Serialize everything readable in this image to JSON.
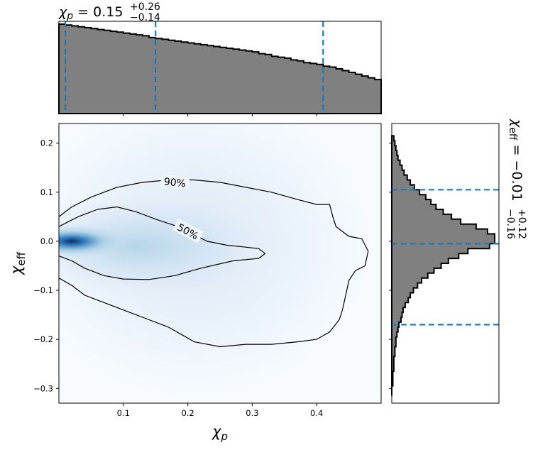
{
  "chart_data": [
    {
      "type": "heatmap",
      "panel": "joint",
      "xlabel_main": "χ",
      "xlabel_sub": "p",
      "ylabel_main": "χ",
      "ylabel_sub": "eff",
      "xlim": [
        0.0,
        0.5
      ],
      "ylim": [
        -0.33,
        0.24
      ],
      "x_ticks": [
        0.1,
        0.2,
        0.3,
        0.4
      ],
      "x_tick_labels": [
        "0.1",
        "0.2",
        "0.3",
        "0.4"
      ],
      "y_ticks": [
        0.2,
        0.1,
        0.0,
        -0.1,
        -0.2,
        -0.3
      ],
      "y_tick_labels": [
        "0.2",
        "0.1",
        "0.0",
        "−0.1",
        "−0.2",
        "−0.3"
      ],
      "colormap": "Blues",
      "density_peak": {
        "x": 0.02,
        "y": 0.0
      },
      "contours": [
        {
          "label": "50%",
          "label_at": [
            0.2,
            0.02
          ],
          "points": [
            [
              0.0,
              0.03
            ],
            [
              0.03,
              0.05
            ],
            [
              0.06,
              0.065
            ],
            [
              0.09,
              0.07
            ],
            [
              0.12,
              0.06
            ],
            [
              0.15,
              0.045
            ],
            [
              0.18,
              0.032
            ],
            [
              0.2,
              0.02
            ],
            [
              0.23,
              0.0
            ],
            [
              0.26,
              -0.008
            ],
            [
              0.29,
              -0.012
            ],
            [
              0.31,
              -0.015
            ],
            [
              0.32,
              -0.025
            ],
            [
              0.31,
              -0.035
            ],
            [
              0.27,
              -0.04
            ],
            [
              0.22,
              -0.055
            ],
            [
              0.18,
              -0.07
            ],
            [
              0.14,
              -0.078
            ],
            [
              0.1,
              -0.077
            ],
            [
              0.07,
              -0.07
            ],
            [
              0.04,
              -0.055
            ],
            [
              0.02,
              -0.04
            ],
            [
              0.0,
              -0.03
            ]
          ]
        },
        {
          "label": "90%",
          "label_at": [
            0.18,
            0.12
          ],
          "points": [
            [
              0.0,
              0.05
            ],
            [
              0.02,
              0.07
            ],
            [
              0.05,
              0.09
            ],
            [
              0.09,
              0.11
            ],
            [
              0.13,
              0.12
            ],
            [
              0.17,
              0.125
            ],
            [
              0.21,
              0.125
            ],
            [
              0.25,
              0.12
            ],
            [
              0.29,
              0.11
            ],
            [
              0.33,
              0.1
            ],
            [
              0.37,
              0.085
            ],
            [
              0.4,
              0.075
            ],
            [
              0.42,
              0.075
            ],
            [
              0.425,
              0.05
            ],
            [
              0.43,
              0.03
            ],
            [
              0.45,
              0.01
            ],
            [
              0.47,
              0.005
            ],
            [
              0.48,
              -0.02
            ],
            [
              0.475,
              -0.05
            ],
            [
              0.46,
              -0.06
            ],
            [
              0.45,
              -0.08
            ],
            [
              0.445,
              -0.11
            ],
            [
              0.44,
              -0.14
            ],
            [
              0.435,
              -0.16
            ],
            [
              0.42,
              -0.185
            ],
            [
              0.4,
              -0.2
            ],
            [
              0.37,
              -0.205
            ],
            [
              0.33,
              -0.21
            ],
            [
              0.29,
              -0.21
            ],
            [
              0.25,
              -0.215
            ],
            [
              0.21,
              -0.205
            ],
            [
              0.19,
              -0.19
            ],
            [
              0.17,
              -0.175
            ],
            [
              0.14,
              -0.16
            ],
            [
              0.1,
              -0.14
            ],
            [
              0.07,
              -0.125
            ],
            [
              0.04,
              -0.11
            ],
            [
              0.02,
              -0.09
            ],
            [
              0.0,
              -0.075
            ]
          ]
        }
      ]
    },
    {
      "type": "bar",
      "panel": "top-marginal",
      "title_main": "χ",
      "title_sub": "p",
      "title_value": " = 0.15",
      "title_sup": "+0.26",
      "title_inf": "−0.14",
      "x_start": 0.0,
      "bin_width": 0.01,
      "values": [
        1.0,
        0.99,
        0.98,
        0.97,
        0.96,
        0.95,
        0.94,
        0.93,
        0.92,
        0.91,
        0.9,
        0.89,
        0.88,
        0.87,
        0.85,
        0.84,
        0.83,
        0.82,
        0.81,
        0.8,
        0.79,
        0.78,
        0.77,
        0.76,
        0.75,
        0.74,
        0.73,
        0.72,
        0.71,
        0.7,
        0.69,
        0.67,
        0.66,
        0.64,
        0.63,
        0.62,
        0.6,
        0.59,
        0.57,
        0.56,
        0.55,
        0.53,
        0.52,
        0.5,
        0.48,
        0.46,
        0.44,
        0.42,
        0.4,
        0.38
      ],
      "quantile_lines": [
        0.01,
        0.15,
        0.41
      ],
      "quantile_color": "#1f77b4",
      "fill_color": "#808080"
    },
    {
      "type": "bar",
      "panel": "right-marginal",
      "orientation": "horizontal",
      "title_main": "χ",
      "title_sub": "eff",
      "title_value": " = −0.01",
      "title_sup": "+0.12",
      "title_inf": "−0.16",
      "bins_y": [
        0.21,
        0.2,
        0.19,
        0.18,
        0.17,
        0.16,
        0.15,
        0.14,
        0.13,
        0.12,
        0.11,
        0.1,
        0.09,
        0.08,
        0.07,
        0.06,
        0.05,
        0.04,
        0.03,
        0.02,
        0.01,
        0.0,
        -0.01,
        -0.02,
        -0.03,
        -0.04,
        -0.05,
        -0.06,
        -0.07,
        -0.08,
        -0.09,
        -0.1,
        -0.11,
        -0.12,
        -0.13,
        -0.14,
        -0.15,
        -0.16,
        -0.17,
        -0.18,
        -0.19,
        -0.2,
        -0.21,
        -0.22,
        -0.23,
        -0.24,
        -0.25,
        -0.26,
        -0.27,
        -0.28,
        -0.29,
        -0.3,
        -0.31
      ],
      "values": [
        0.02,
        0.03,
        0.04,
        0.05,
        0.06,
        0.08,
        0.1,
        0.12,
        0.15,
        0.18,
        0.22,
        0.27,
        0.33,
        0.38,
        0.43,
        0.5,
        0.58,
        0.67,
        0.82,
        0.93,
        1.0,
        1.0,
        0.95,
        0.74,
        0.65,
        0.55,
        0.48,
        0.41,
        0.35,
        0.29,
        0.25,
        0.21,
        0.18,
        0.16,
        0.13,
        0.11,
        0.1,
        0.09,
        0.07,
        0.06,
        0.05,
        0.04,
        0.04,
        0.03,
        0.03,
        0.02,
        0.02,
        0.02,
        0.01,
        0.01,
        0.01,
        0.0,
        0.0
      ],
      "quantile_lines": [
        0.105,
        -0.005,
        -0.17
      ],
      "quantile_color": "#1f77b4",
      "fill_color": "#808080"
    }
  ]
}
